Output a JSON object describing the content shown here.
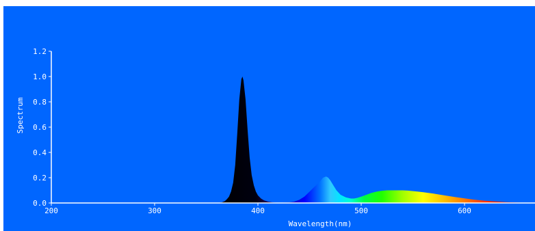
{
  "colors": {
    "plot_background": "#0066ff",
    "page_background": "#ffffff",
    "axis": "#ffffff",
    "text": "#ffffff"
  },
  "chart_data": {
    "type": "area",
    "title": "",
    "xlabel": "Wavelength(nm)",
    "ylabel": "Spectrum",
    "xlim": [
      200,
      665
    ],
    "ylim": [
      0,
      1.2
    ],
    "x_ticks": [
      200,
      300,
      400,
      500,
      600
    ],
    "x_tick_labels": [
      "200",
      "300",
      "400",
      "500",
      "600"
    ],
    "y_ticks": [
      0,
      0.2,
      0.4,
      0.6,
      0.8,
      1.0,
      1.2
    ],
    "y_tick_labels": [
      "0.0",
      "0.2",
      "0.4",
      "0.6",
      "0.8",
      "1.0",
      "1.2"
    ],
    "grid": false,
    "legend": "none",
    "fill": "visible-spectrum colour gradient by wavelength; UV region drawn black",
    "series": [
      {
        "x": [
          360,
          365,
          368,
          370,
          372,
          374,
          376,
          378,
          380,
          382,
          384,
          385,
          386,
          388,
          390,
          392,
          394,
          396,
          398,
          400,
          403,
          406,
          410,
          415,
          420,
          430,
          435,
          440,
          445,
          450,
          455,
          460,
          463,
          466,
          468,
          470,
          473,
          476,
          480,
          485,
          490,
          493,
          496,
          500,
          505,
          510,
          515,
          520,
          525,
          530,
          535,
          540,
          545,
          550,
          555,
          560,
          570,
          580,
          590,
          600,
          610,
          620,
          630,
          640,
          650,
          660,
          665
        ],
        "y": [
          0,
          0.005,
          0.015,
          0.03,
          0.05,
          0.09,
          0.16,
          0.3,
          0.55,
          0.82,
          0.98,
          1.0,
          0.97,
          0.82,
          0.58,
          0.36,
          0.22,
          0.14,
          0.09,
          0.06,
          0.035,
          0.02,
          0.01,
          0.004,
          0.002,
          0.004,
          0.01,
          0.025,
          0.05,
          0.09,
          0.13,
          0.17,
          0.2,
          0.21,
          0.2,
          0.18,
          0.14,
          0.1,
          0.065,
          0.045,
          0.035,
          0.035,
          0.04,
          0.05,
          0.065,
          0.08,
          0.09,
          0.097,
          0.1,
          0.1,
          0.1,
          0.1,
          0.098,
          0.094,
          0.09,
          0.085,
          0.074,
          0.061,
          0.048,
          0.036,
          0.026,
          0.018,
          0.012,
          0.007,
          0.004,
          0.002,
          0.001
        ]
      }
    ]
  }
}
